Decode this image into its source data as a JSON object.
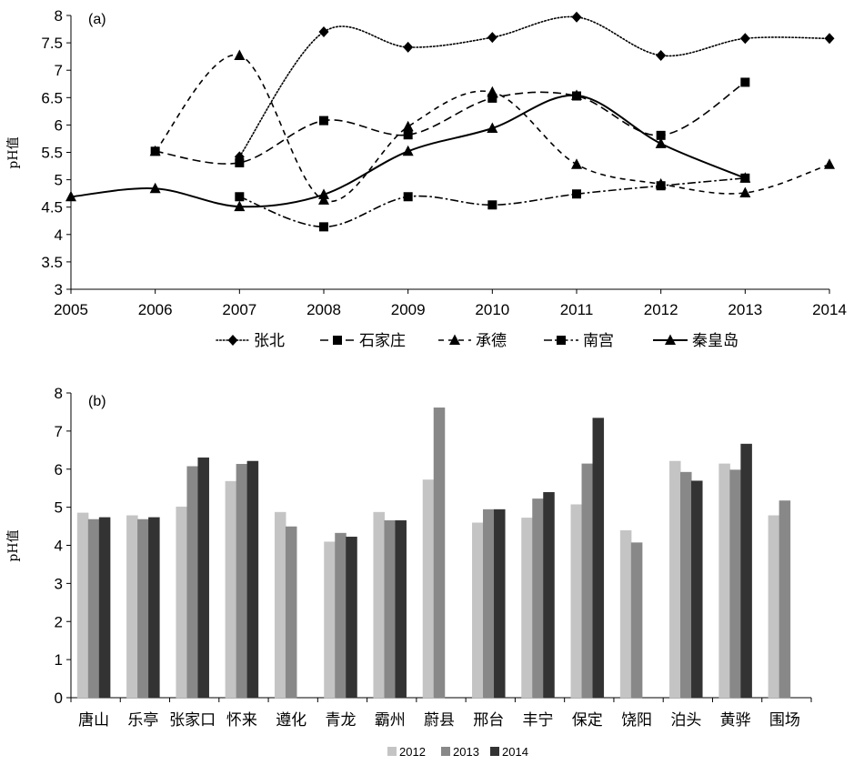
{
  "chart_data": [
    {
      "type": "line",
      "panel_label": "(a)",
      "ylabel": "pH值",
      "x": [
        2005,
        2006,
        2007,
        2008,
        2009,
        2010,
        2011,
        2012,
        2013,
        2014
      ],
      "ylim": [
        3,
        8
      ],
      "y_ticks": [
        3,
        3.5,
        4,
        4.5,
        5,
        5.5,
        6,
        6.5,
        7,
        7.5,
        8
      ],
      "legend_position": "bottom",
      "series": [
        {
          "name": "张北",
          "color": "#000000",
          "values": [
            null,
            null,
            5.42,
            7.7,
            7.42,
            7.6,
            7.97,
            7.27,
            7.58,
            7.58
          ]
        },
        {
          "name": "石家庄",
          "color": "#000000",
          "values": [
            null,
            5.52,
            5.31,
            6.08,
            5.82,
            6.49,
            6.53,
            5.81,
            6.78,
            null
          ]
        },
        {
          "name": "承德",
          "color": "#000000",
          "values": [
            null,
            5.52,
            7.27,
            4.63,
            5.97,
            6.6,
            5.28,
            4.92,
            4.76,
            5.28
          ]
        },
        {
          "name": "南宫",
          "color": "#000000",
          "values": [
            null,
            null,
            4.69,
            4.14,
            4.69,
            4.54,
            4.74,
            4.89,
            5.03,
            null
          ]
        },
        {
          "name": "秦皇岛",
          "color": "#000000",
          "values": [
            4.69,
            4.84,
            4.51,
            4.73,
            5.52,
            5.94,
            6.54,
            5.66,
            5.03,
            null
          ]
        }
      ]
    },
    {
      "type": "bar",
      "panel_label": "(b)",
      "ylabel": "pH值",
      "categories": [
        "唐山",
        "乐亭",
        "张家口",
        "怀来",
        "遵化",
        "青龙",
        "霸州",
        "蔚县",
        "邢台",
        "丰宁",
        "保定",
        "饶阳",
        "泊头",
        "黄骅",
        "围场"
      ],
      "ylim": [
        0,
        8
      ],
      "y_ticks": [
        0,
        1,
        2,
        3,
        4,
        5,
        6,
        7,
        8
      ],
      "legend_position": "bottom",
      "series": [
        {
          "name": "2012",
          "color": "#c4c4c4",
          "values": [
            4.85,
            4.78,
            5.01,
            5.68,
            4.87,
            4.09,
            4.87,
            5.72,
            4.59,
            4.72,
            5.07,
            4.39,
            6.21,
            6.14,
            4.78
          ]
        },
        {
          "name": "2013",
          "color": "#888888",
          "values": [
            4.68,
            4.68,
            6.07,
            6.13,
            4.49,
            4.32,
            4.65,
            7.61,
            4.94,
            5.22,
            6.14,
            4.07,
            5.92,
            5.98,
            5.17
          ]
        },
        {
          "name": "2014",
          "color": "#333333",
          "values": [
            4.73,
            4.73,
            6.3,
            6.21,
            null,
            4.22,
            4.65,
            null,
            4.94,
            5.39,
            7.34,
            null,
            5.69,
            6.66,
            null
          ]
        }
      ]
    }
  ]
}
